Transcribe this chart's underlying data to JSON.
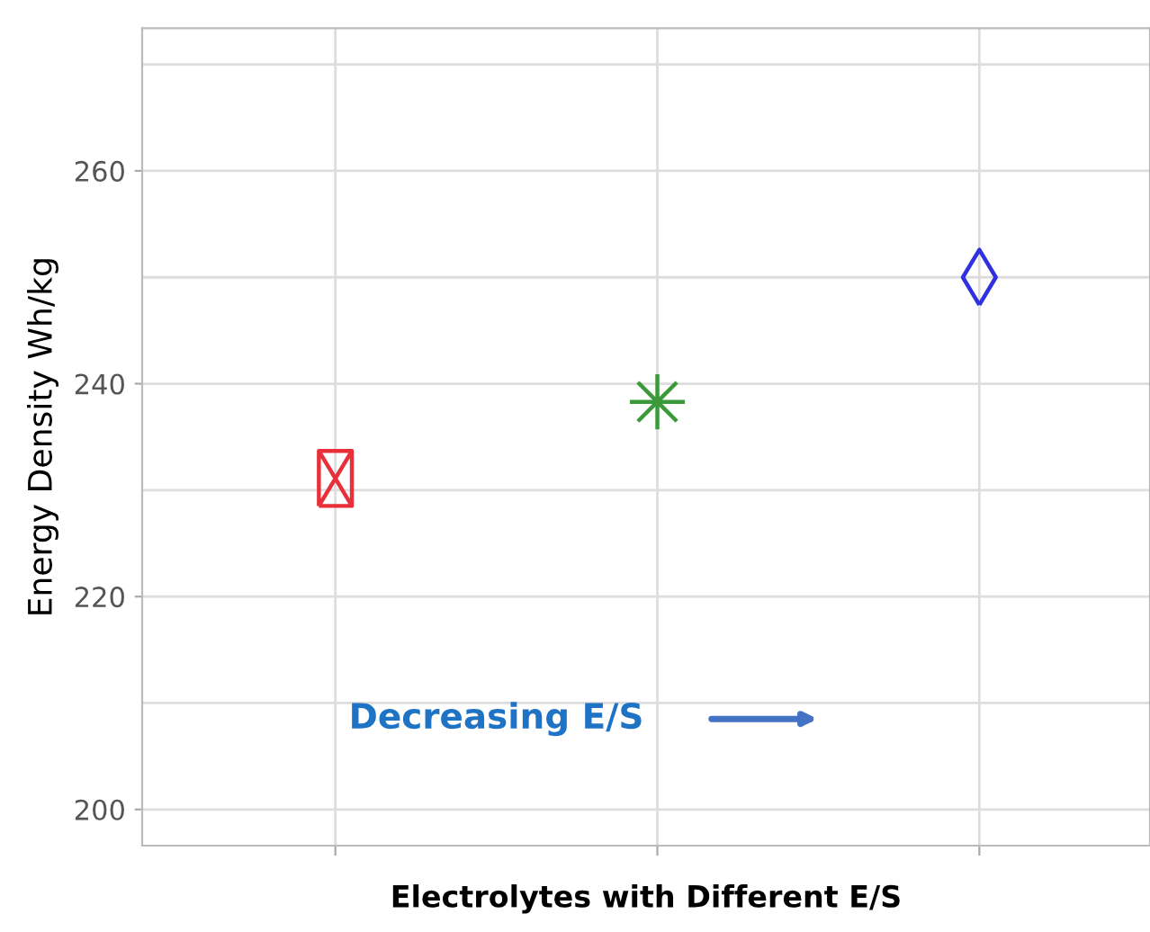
{
  "chart_data": {
    "type": "scatter",
    "xlabel": "Electrolytes with Different E/S",
    "ylabel": "Energy Density Wh/kg",
    "categories": [
      null,
      null,
      null
    ],
    "series": [
      {
        "color": "#e8303a",
        "marker": "square",
        "values": [
          231.1,
          null,
          null
        ]
      },
      {
        "color": "#3a9a3a",
        "marker": "cross",
        "values": [
          null,
          238.3,
          null
        ]
      },
      {
        "color": "#3030e0",
        "marker": "diamond",
        "values": [
          null,
          null,
          250.0
        ]
      }
    ],
    "ylim": [
      196.6,
      273.4
    ],
    "yticks": [
      200,
      220,
      240,
      260
    ],
    "grid": true,
    "legend": false,
    "annotations": [
      "Decreasing E/S"
    ]
  }
}
